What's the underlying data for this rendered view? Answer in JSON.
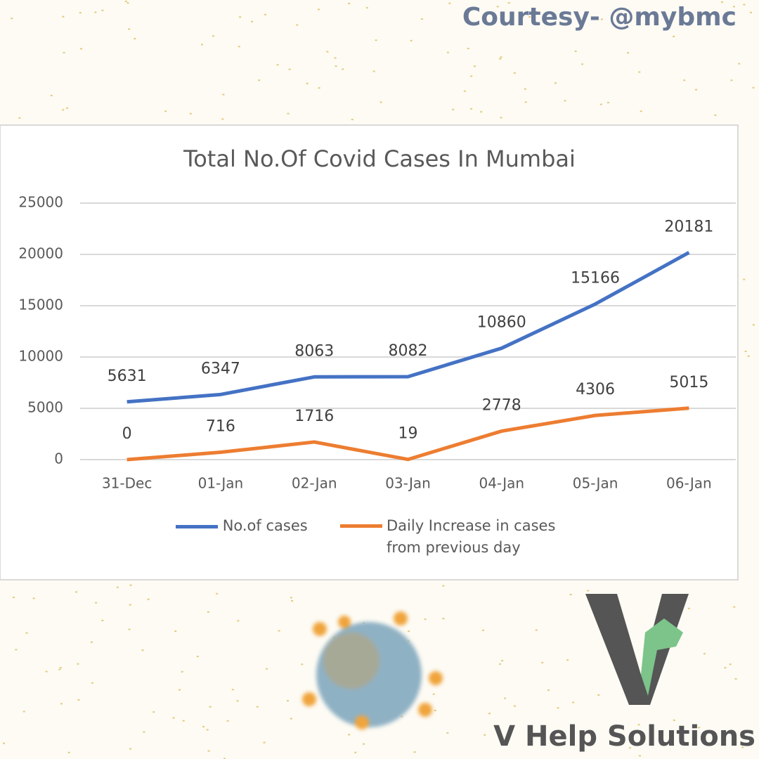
{
  "courtesy": "Courtesy- @mybmc",
  "brand": "V Help Solutions",
  "chart_data": {
    "type": "line",
    "title": "Total No.Of Covid Cases In Mumbai",
    "categories": [
      "31-Dec",
      "01-Jan",
      "02-Jan",
      "03-Jan",
      "04-Jan",
      "05-Jan",
      "06-Jan"
    ],
    "series": [
      {
        "name": "No.of cases",
        "color": "#4472c4",
        "values": [
          5631,
          6347,
          8063,
          8082,
          10860,
          15166,
          20181
        ]
      },
      {
        "name": "Daily Increase in cases from previous day",
        "color": "#ed7d31",
        "values": [
          0,
          716,
          1716,
          19,
          2778,
          4306,
          5015
        ]
      }
    ],
    "ylim": [
      0,
      25000
    ],
    "yticks": [
      0,
      5000,
      10000,
      15000,
      20000,
      25000
    ],
    "grid": true,
    "legend": "bottom"
  }
}
